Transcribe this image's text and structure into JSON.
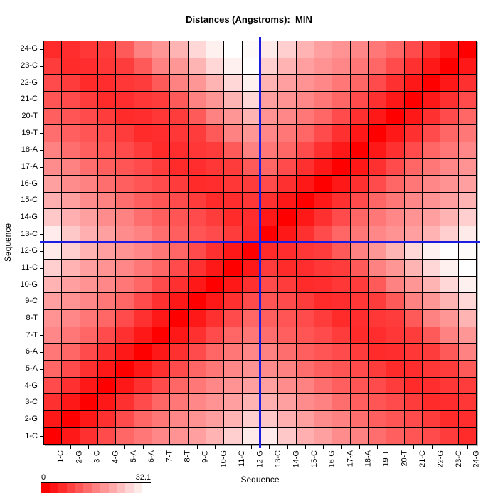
{
  "title": "Distances (Angstroms):  MIN",
  "axes": {
    "x_label": "Sequence",
    "y_label": "Sequence"
  },
  "legend": {
    "min_label": "0",
    "max_label": "32.1",
    "steps": 13
  },
  "colors": {
    "scale_low": "#ff0000",
    "scale_high": "#ffffff",
    "crosshair": "#1c1ce0",
    "grid_line": "#000000",
    "shadow": "#b4b4b4"
  },
  "crosshair": {
    "between_columns": [
      "12-G",
      "13-C"
    ],
    "between_rows": [
      "12-G",
      "13-C"
    ]
  },
  "chart_data": {
    "type": "heatmap",
    "title": "Distances (Angstroms):  MIN",
    "xlabel": "Sequence",
    "ylabel": "Sequence",
    "legend_position": "bottom-left",
    "grid": true,
    "y_order": "bottom-to-top",
    "scale": {
      "min": 0,
      "max": 32.1,
      "low_color": "#ff0000",
      "high_color": "#ffffff"
    },
    "categories": [
      "1-C",
      "2-G",
      "3-C",
      "4-G",
      "5-A",
      "6-A",
      "7-T",
      "8-T",
      "9-C",
      "10-G",
      "11-C",
      "12-G",
      "13-C",
      "14-G",
      "15-C",
      "16-G",
      "17-A",
      "18-A",
      "19-T",
      "20-T",
      "21-C",
      "22-G",
      "23-C",
      "24-G"
    ],
    "values": [
      [
        0,
        3,
        6,
        9.5,
        13,
        15,
        17,
        18.5,
        20,
        22.5,
        26,
        29.5,
        29.6,
        25.2,
        22,
        20.1,
        17.6,
        16.4,
        13.8,
        12,
        10.7,
        9.4,
        7.6,
        5.4
      ],
      [
        3,
        0,
        3,
        6,
        9.5,
        13,
        15,
        17,
        18.5,
        20,
        22.5,
        26,
        25.2,
        22,
        20.1,
        17.6,
        16.4,
        13.8,
        12,
        10.7,
        9.4,
        7.6,
        5.4,
        5.7
      ],
      [
        6,
        3,
        0,
        3,
        6,
        9.5,
        13,
        15,
        17,
        18.5,
        20,
        22.5,
        22,
        20.1,
        17.6,
        16.4,
        13.8,
        12,
        10.7,
        9.4,
        7.6,
        5.4,
        5.7,
        6.9
      ],
      [
        9.5,
        6,
        3,
        0,
        3,
        6,
        9.5,
        13,
        15,
        17,
        18.5,
        20,
        20.1,
        17.6,
        16.4,
        13.8,
        12,
        10.7,
        9.4,
        7.6,
        5.4,
        5.7,
        6.9,
        7.6
      ],
      [
        13,
        9.5,
        6,
        3,
        0,
        3,
        6,
        9.5,
        13,
        15,
        17,
        18.5,
        17.6,
        16.4,
        13.8,
        12,
        10.7,
        9.4,
        7.6,
        5.4,
        5.7,
        6.9,
        7.6,
        11.3
      ],
      [
        15,
        13,
        9.5,
        6,
        3,
        0,
        3,
        6,
        9.5,
        13,
        15,
        17,
        16.4,
        13.8,
        12,
        10.7,
        9.4,
        7.6,
        5.4,
        5.7,
        6.9,
        7.6,
        11.3,
        16.4
      ],
      [
        17,
        15,
        13,
        9.5,
        6,
        3,
        0,
        3,
        6,
        9.5,
        13,
        15,
        13.8,
        12,
        10.7,
        9.4,
        7.6,
        5.4,
        5.7,
        6.9,
        7.6,
        11.3,
        16.4,
        18.9
      ],
      [
        18.5,
        17,
        15,
        13,
        9.5,
        6,
        3,
        0,
        3,
        6,
        9.5,
        13,
        12,
        10.7,
        9.4,
        7.6,
        5.4,
        5.7,
        6.9,
        7.6,
        11.3,
        16.4,
        18.9,
        22.7
      ],
      [
        20,
        18.5,
        17,
        15,
        13,
        9.5,
        6,
        3,
        0,
        3,
        6,
        9.5,
        10.7,
        9.4,
        7.6,
        5.4,
        5.7,
        6.9,
        7.6,
        11.3,
        16.4,
        18.9,
        22.7,
        27.1
      ],
      [
        22.5,
        20,
        18.5,
        17,
        15,
        13,
        9.5,
        6,
        3,
        0,
        3,
        6,
        9.4,
        7.6,
        5.4,
        5.7,
        6.9,
        7.6,
        11.3,
        16.4,
        18.9,
        22.7,
        27.1,
        30.2
      ],
      [
        26,
        22.5,
        20,
        18.5,
        17,
        15,
        13,
        9.5,
        6,
        3,
        0,
        3,
        7.6,
        5.4,
        5.7,
        6.9,
        7.6,
        11.3,
        16.4,
        18.9,
        22.7,
        27.1,
        30.2,
        32.1
      ],
      [
        29.5,
        26,
        22.5,
        20,
        18.5,
        17,
        15,
        13,
        9.5,
        6,
        3,
        0,
        5.4,
        5.7,
        6.9,
        7.6,
        11.3,
        16.4,
        18.9,
        22.7,
        27.1,
        30.2,
        32.1,
        31.5
      ],
      [
        29.6,
        25.2,
        22,
        20.1,
        17.6,
        16.4,
        13.8,
        12,
        10.7,
        9.4,
        7.6,
        5.4,
        0,
        3,
        6,
        9.5,
        13,
        15,
        17,
        18.5,
        20,
        22.5,
        26,
        29.5
      ],
      [
        25.2,
        22,
        20.1,
        17.6,
        16.4,
        13.8,
        12,
        10.7,
        9.4,
        7.6,
        5.4,
        5.7,
        3,
        0,
        3,
        6,
        9.5,
        13,
        15,
        17,
        18.5,
        20,
        22.5,
        26
      ],
      [
        22,
        20.1,
        17.6,
        16.4,
        13.8,
        12,
        10.7,
        9.4,
        7.6,
        5.4,
        5.7,
        6.9,
        6,
        3,
        0,
        3,
        6,
        9.5,
        13,
        15,
        17,
        18.5,
        20,
        22.5
      ],
      [
        20.1,
        17.6,
        16.4,
        13.8,
        12,
        10.7,
        9.4,
        7.6,
        5.4,
        5.7,
        6.9,
        7.6,
        9.5,
        6,
        3,
        0,
        3,
        6,
        9.5,
        13,
        15,
        17,
        18.5,
        20
      ],
      [
        17.6,
        16.4,
        13.8,
        12,
        10.7,
        9.4,
        7.6,
        5.4,
        5.7,
        6.9,
        7.6,
        11.3,
        13,
        9.5,
        6,
        3,
        0,
        3,
        6,
        9.5,
        13,
        15,
        17,
        18.5
      ],
      [
        16.4,
        13.8,
        12,
        10.7,
        9.4,
        7.6,
        5.4,
        5.7,
        6.9,
        7.6,
        11.3,
        16.4,
        15,
        13,
        9.5,
        6,
        3,
        0,
        3,
        6,
        9.5,
        13,
        15,
        17
      ],
      [
        13.8,
        12,
        10.7,
        9.4,
        7.6,
        5.4,
        5.7,
        6.9,
        7.6,
        11.3,
        16.4,
        18.9,
        17,
        15,
        13,
        9.5,
        6,
        3,
        0,
        3,
        6,
        9.5,
        13,
        15
      ],
      [
        12,
        10.7,
        9.4,
        7.6,
        5.4,
        5.7,
        6.9,
        7.6,
        11.3,
        16.4,
        18.9,
        22.7,
        18.5,
        17,
        15,
        13,
        9.5,
        6,
        3,
        0,
        3,
        6,
        9.5,
        13
      ],
      [
        10.7,
        9.4,
        7.6,
        5.4,
        5.7,
        6.9,
        7.6,
        11.3,
        16.4,
        18.9,
        22.7,
        27.1,
        20,
        18.5,
        17,
        15,
        13,
        9.5,
        6,
        3,
        0,
        3,
        6,
        9.5
      ],
      [
        9.4,
        7.6,
        5.4,
        5.7,
        6.9,
        7.6,
        11.3,
        16.4,
        18.9,
        22.7,
        27.1,
        30.2,
        22.5,
        20,
        18.5,
        17,
        15,
        13,
        9.5,
        6,
        3,
        0,
        3,
        6
      ],
      [
        7.6,
        5.4,
        5.7,
        6.9,
        7.6,
        11.3,
        16.4,
        18.9,
        22.7,
        27.1,
        30.2,
        32.1,
        26,
        22.5,
        20,
        18.5,
        17,
        15,
        13,
        9.5,
        6,
        3,
        0,
        3
      ],
      [
        5.4,
        5.7,
        6.9,
        7.6,
        11.3,
        16.4,
        18.9,
        22.7,
        27.1,
        30.2,
        32.1,
        31.5,
        29.5,
        26,
        22.5,
        20,
        18.5,
        17,
        15,
        13,
        9.5,
        6,
        3,
        0
      ]
    ]
  }
}
